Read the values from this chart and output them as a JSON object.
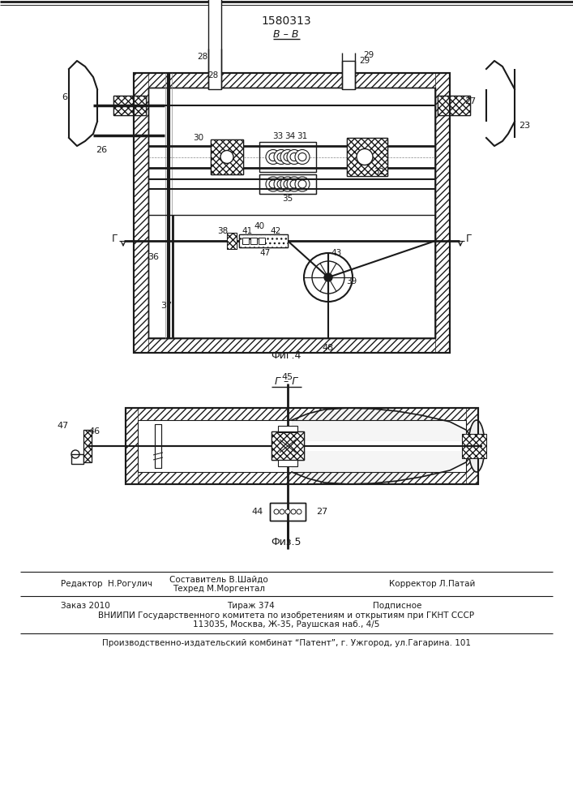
{
  "patent_number": "1580313",
  "section_label_top": "B – B",
  "section_label_bottom": "Г – Г",
  "fig4_label": "Фиг.4",
  "fig5_label": "Физ.5",
  "footer_editor": "Редактор  Н.Рогулич",
  "footer_composer": "Составитель В.Шайдо",
  "footer_techred": "Техред М.Моргентал",
  "footer_corrector": "Корректор Л.Патай",
  "footer_order": "Заказ 2010",
  "footer_tirazh": "Тираж 374",
  "footer_podpisnoe": "Подписное",
  "footer_vniipI": "ВНИИПИ Государственного комитета по изобретениям и открытиям при ГКНТ СССР",
  "footer_address": "113035, Москва, Ж-35, Раушская наб., 4/5",
  "footer_publisher": "Производственно-издательский комбинат “Патент”, г. Ужгород, ул.Гагарина. 101",
  "bg_color": "#ffffff",
  "drawing_color": "#1a1a1a",
  "line_width": 1.0
}
